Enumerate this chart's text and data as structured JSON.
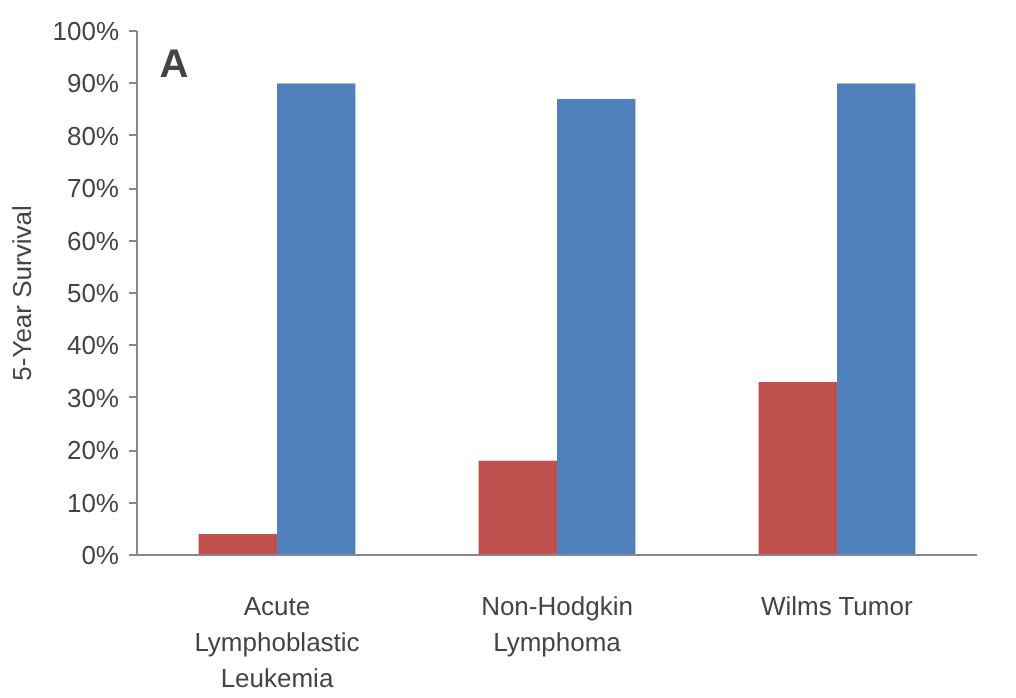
{
  "chart_data": {
    "type": "bar",
    "ylabel": "5-Year Survival",
    "annotations": [
      "A"
    ],
    "categories": [
      "Acute Lymphoblastic Leukemia",
      "Non-Hodgkin Lymphoma",
      "Wilms Tumor"
    ],
    "series": [
      {
        "color": "#c0504d",
        "values": [
          4,
          18,
          33
        ]
      },
      {
        "color": "#4f81bd",
        "values": [
          90,
          87,
          90
        ]
      }
    ],
    "ylim": [
      0,
      100
    ],
    "yticks": [
      {
        "value": 0,
        "label": "0%"
      },
      {
        "value": 10,
        "label": "10%"
      },
      {
        "value": 20,
        "label": "20%"
      },
      {
        "value": 30,
        "label": "30%"
      },
      {
        "value": 40,
        "label": "40%"
      },
      {
        "value": 50,
        "label": "50%"
      },
      {
        "value": 60,
        "label": "60%"
      },
      {
        "value": 70,
        "label": "70%"
      },
      {
        "value": 80,
        "label": "80%"
      },
      {
        "value": 90,
        "label": "90%"
      },
      {
        "value": 100,
        "label": "100%"
      }
    ],
    "grid": false
  }
}
